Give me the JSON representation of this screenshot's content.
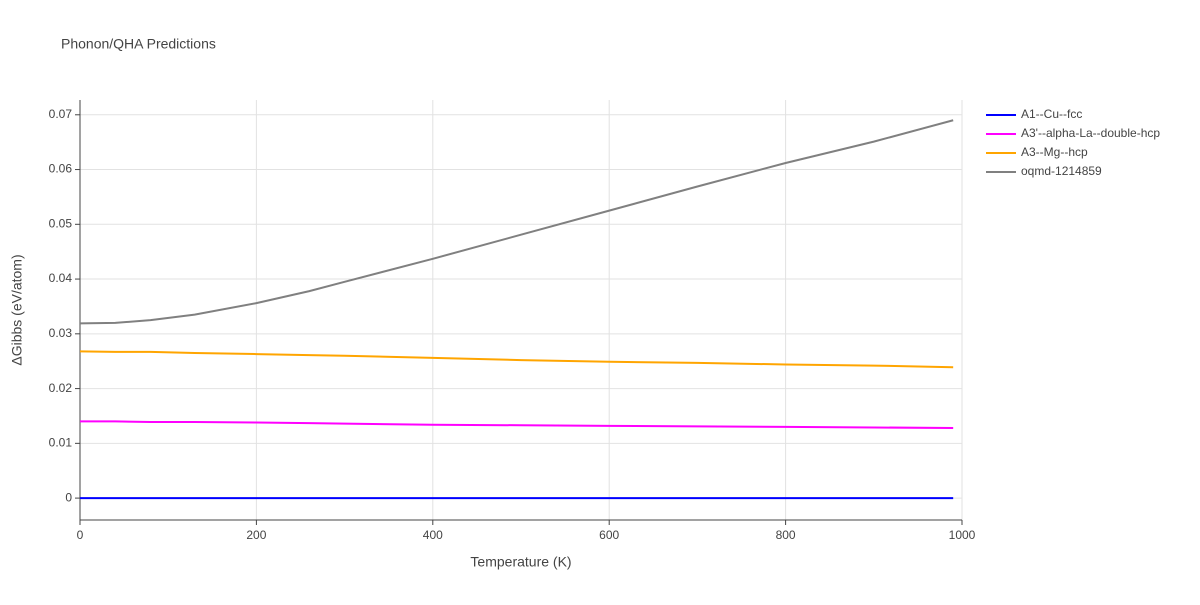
{
  "chart_data": {
    "type": "line",
    "title": "Phonon/QHA Predictions",
    "x_label": "Temperature (K)",
    "y_label": "ΔGibbs (eV/atom)",
    "x": [
      0,
      40,
      80,
      130,
      200,
      260,
      300,
      400,
      500,
      600,
      700,
      800,
      900,
      990
    ],
    "series": [
      {
        "name": "A1--Cu--fcc",
        "color": "#0000ff",
        "values": [
          0,
          0,
          0,
          0,
          0,
          0,
          0,
          0,
          0,
          0,
          0,
          0,
          0,
          0
        ]
      },
      {
        "name": "A3'--alpha-La--double-hcp",
        "color": "#ff00ff",
        "values": [
          0.014,
          0.014,
          0.0139,
          0.0139,
          0.0138,
          0.0137,
          0.0136,
          0.0134,
          0.0133,
          0.0132,
          0.0131,
          0.013,
          0.0129,
          0.0128
        ]
      },
      {
        "name": "A3--Mg--hcp",
        "color": "#ffa500",
        "values": [
          0.0268,
          0.0267,
          0.0267,
          0.0265,
          0.0263,
          0.0261,
          0.026,
          0.0256,
          0.0252,
          0.0249,
          0.0247,
          0.0244,
          0.0242,
          0.0239
        ]
      },
      {
        "name": "oqmd-1214859",
        "color": "#808080",
        "values": [
          0.0319,
          0.032,
          0.0325,
          0.0335,
          0.0356,
          0.0378,
          0.0395,
          0.0437,
          0.0481,
          0.0525,
          0.0569,
          0.0612,
          0.0651,
          0.069
        ]
      }
    ],
    "xlim": [
      0,
      1000
    ],
    "xticks": [
      0,
      200,
      400,
      600,
      800,
      1000
    ],
    "ylim": [
      -0.004,
      0.0727
    ],
    "yticks": [
      0,
      0.01,
      0.02,
      0.03,
      0.04,
      0.05,
      0.06,
      0.07
    ],
    "grid": true,
    "legend": "right"
  }
}
